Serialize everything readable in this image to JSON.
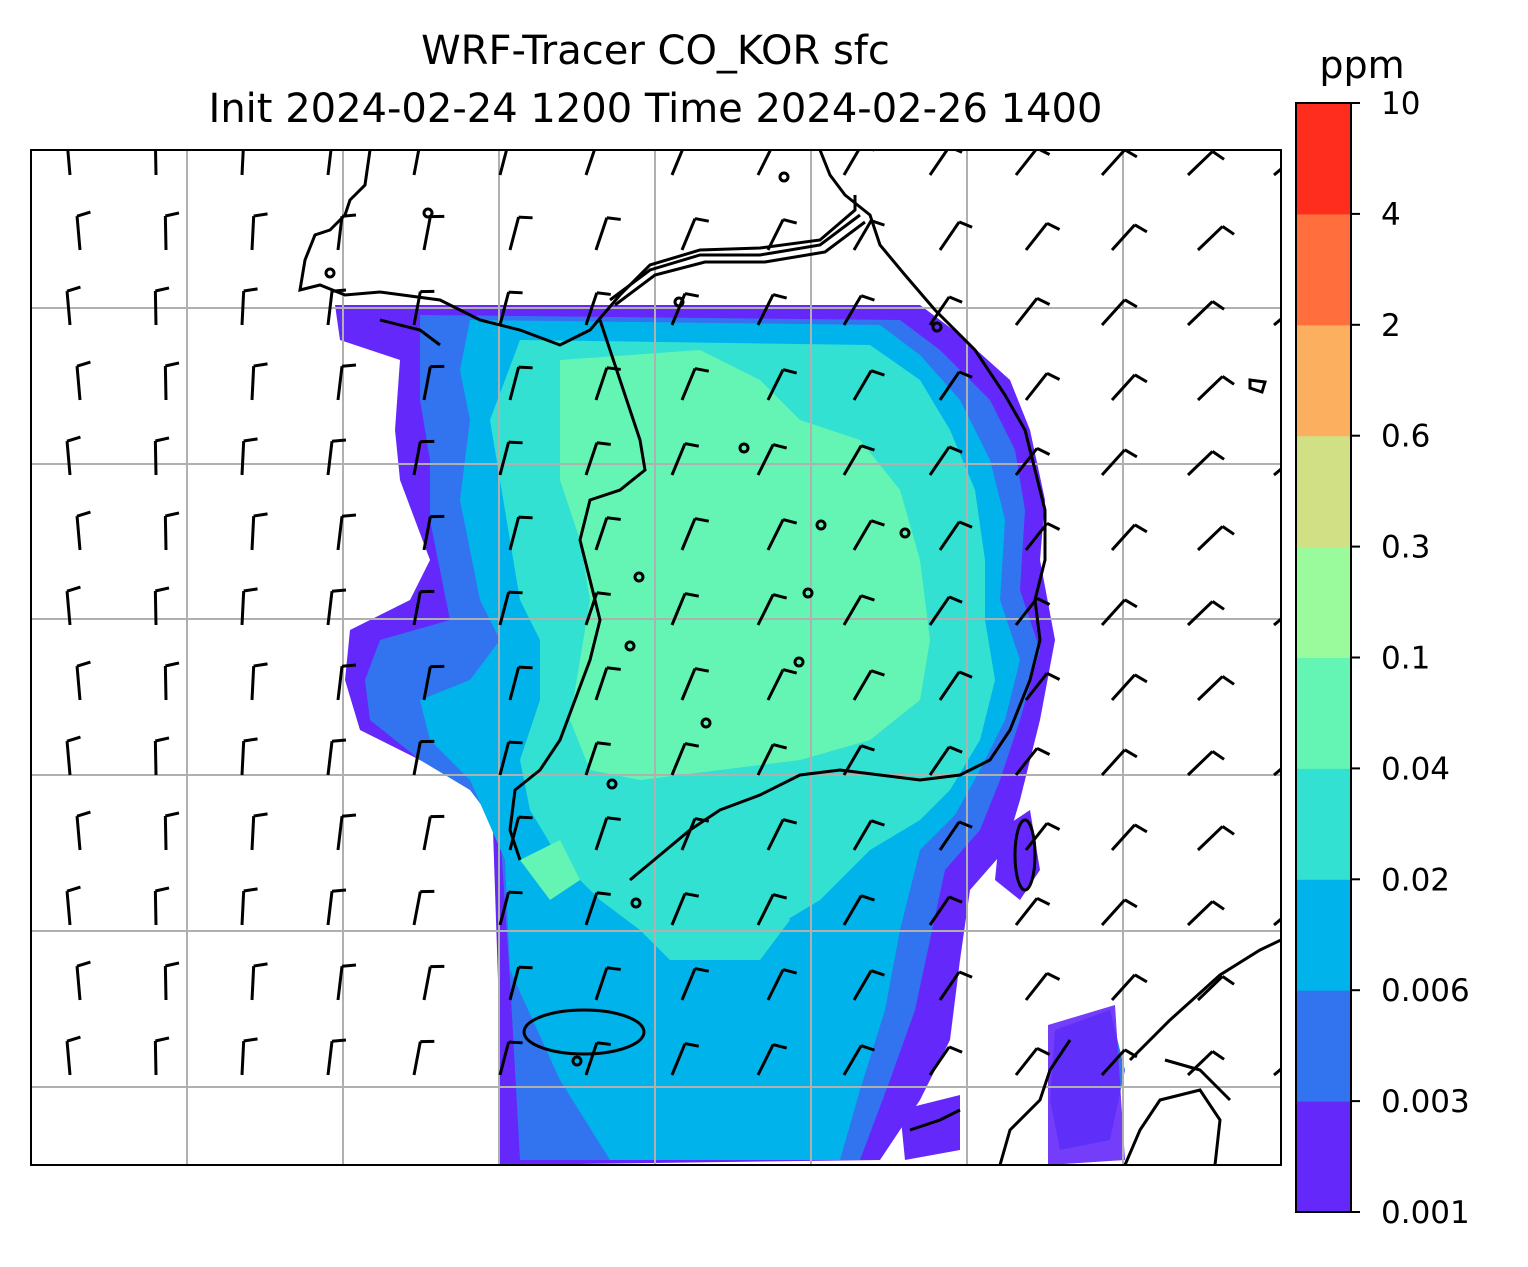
{
  "title": {
    "line1": "WRF-Tracer CO_KOR sfc",
    "line2": "Init 2024-02-24 1200 Time 2024-02-26 1400"
  },
  "colorbar": {
    "unit": "ppm",
    "levels": [
      "0.001",
      "0.003",
      "0.006",
      "0.02",
      "0.04",
      "0.1",
      "0.3",
      "0.6",
      "2",
      "4",
      "10"
    ],
    "colors": [
      "#6428fa",
      "#3274f0",
      "#00b4eb",
      "#32e1d2",
      "#64f5b4",
      "#9afb9c",
      "#d1e084",
      "#fdaf60",
      "#ff6e3c",
      "#ff2d1e"
    ]
  },
  "map": {
    "background": "#ffffff",
    "coastline_color": "#000000",
    "gridline_color": "#b0b0b0",
    "barb_color": "#000000",
    "field_description_colors": {
      "outer_plume": "#6428fa",
      "band2": "#3274f0",
      "band3": "#00b4eb",
      "band4": "#32e1d2",
      "core": "#64f5b4"
    }
  }
}
